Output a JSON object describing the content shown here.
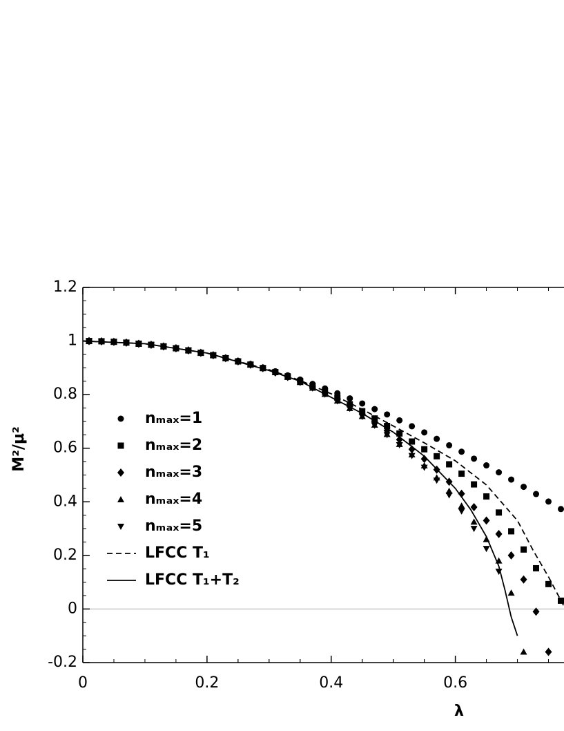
{
  "chart_data": {
    "type": "scatter",
    "xlabel": "λ",
    "ylabel": "M²/μ²",
    "xlim": [
      0,
      0.775
    ],
    "ylim": [
      -0.2,
      1.2
    ],
    "xticks": [
      0,
      0.2,
      0.4,
      0.6
    ],
    "yticks": [
      -0.2,
      0,
      0.2,
      0.4,
      0.6,
      0.8,
      1,
      1.2
    ],
    "grid": false,
    "zero_line": true,
    "legend": "left",
    "series": [
      {
        "name": "nₘₐₓ=1",
        "color": "#000000",
        "marker": "circle",
        "x": [
          0.01,
          0.03,
          0.05,
          0.07,
          0.09,
          0.11,
          0.13,
          0.15,
          0.17,
          0.19,
          0.21,
          0.23,
          0.25,
          0.27,
          0.29,
          0.31,
          0.33,
          0.35,
          0.37,
          0.39,
          0.41,
          0.43,
          0.45,
          0.47,
          0.49,
          0.51,
          0.53,
          0.55,
          0.57,
          0.59,
          0.61,
          0.63,
          0.65,
          0.67,
          0.69,
          0.71,
          0.73,
          0.75,
          0.77
        ],
        "values": [
          1.0,
          0.999,
          0.997,
          0.994,
          0.99,
          0.986,
          0.98,
          0.973,
          0.965,
          0.957,
          0.948,
          0.937,
          0.926,
          0.914,
          0.901,
          0.887,
          0.872,
          0.856,
          0.84,
          0.823,
          0.805,
          0.786,
          0.767,
          0.746,
          0.726,
          0.704,
          0.682,
          0.659,
          0.635,
          0.611,
          0.587,
          0.561,
          0.536,
          0.51,
          0.483,
          0.456,
          0.429,
          0.401,
          0.373
        ]
      },
      {
        "name": "nₘₐₓ=2",
        "color": "#000000",
        "marker": "square",
        "x": [
          0.01,
          0.03,
          0.05,
          0.07,
          0.09,
          0.11,
          0.13,
          0.15,
          0.17,
          0.19,
          0.21,
          0.23,
          0.25,
          0.27,
          0.29,
          0.31,
          0.33,
          0.35,
          0.37,
          0.39,
          0.41,
          0.43,
          0.45,
          0.47,
          0.49,
          0.51,
          0.53,
          0.55,
          0.57,
          0.59,
          0.61,
          0.63,
          0.65,
          0.67,
          0.69,
          0.71,
          0.73,
          0.75,
          0.77
        ],
        "values": [
          1.0,
          0.999,
          0.997,
          0.994,
          0.99,
          0.986,
          0.98,
          0.973,
          0.965,
          0.956,
          0.947,
          0.936,
          0.924,
          0.912,
          0.899,
          0.884,
          0.868,
          0.851,
          0.832,
          0.811,
          0.788,
          0.764,
          0.738,
          0.711,
          0.683,
          0.655,
          0.625,
          0.596,
          0.57,
          0.54,
          0.505,
          0.465,
          0.42,
          0.36,
          0.29,
          0.222,
          0.152,
          0.093,
          0.031
        ]
      },
      {
        "name": "nₘₐₓ=3",
        "color": "#000000",
        "marker": "diamond",
        "x": [
          0.01,
          0.03,
          0.05,
          0.07,
          0.09,
          0.11,
          0.13,
          0.15,
          0.17,
          0.19,
          0.21,
          0.23,
          0.25,
          0.27,
          0.29,
          0.31,
          0.33,
          0.35,
          0.37,
          0.39,
          0.41,
          0.43,
          0.45,
          0.47,
          0.49,
          0.51,
          0.53,
          0.55,
          0.57,
          0.59,
          0.61,
          0.63,
          0.65,
          0.67,
          0.69,
          0.71,
          0.73,
          0.75,
          0.77
        ],
        "values": [
          1.0,
          0.999,
          0.997,
          0.994,
          0.99,
          0.986,
          0.98,
          0.973,
          0.965,
          0.956,
          0.947,
          0.936,
          0.924,
          0.912,
          0.899,
          0.883,
          0.866,
          0.848,
          0.828,
          0.806,
          0.782,
          0.756,
          0.728,
          0.698,
          0.666,
          0.632,
          0.596,
          0.56,
          0.52,
          0.475,
          0.43,
          0.38,
          0.33,
          0.28,
          0.2,
          0.11,
          -0.01,
          -0.16,
          null
        ]
      },
      {
        "name": "nₘₐₓ=4",
        "color": "#000000",
        "marker": "triangle-up",
        "x": [
          0.01,
          0.03,
          0.05,
          0.07,
          0.09,
          0.11,
          0.13,
          0.15,
          0.17,
          0.19,
          0.21,
          0.23,
          0.25,
          0.27,
          0.29,
          0.31,
          0.33,
          0.35,
          0.37,
          0.39,
          0.41,
          0.43,
          0.45,
          0.47,
          0.49,
          0.51,
          0.53,
          0.55,
          0.57,
          0.59,
          0.61,
          0.63,
          0.65,
          0.67,
          0.69,
          0.71,
          0.73,
          0.75,
          0.77
        ],
        "values": [
          1.0,
          0.999,
          0.997,
          0.994,
          0.99,
          0.986,
          0.98,
          0.973,
          0.965,
          0.956,
          0.947,
          0.936,
          0.924,
          0.912,
          0.899,
          0.883,
          0.865,
          0.846,
          0.825,
          0.802,
          0.777,
          0.749,
          0.719,
          0.687,
          0.652,
          0.615,
          0.576,
          0.535,
          0.49,
          0.44,
          0.385,
          0.325,
          0.26,
          0.18,
          0.06,
          -0.16,
          null,
          null,
          null
        ]
      },
      {
        "name": "nₘₐₓ=5",
        "color": "#000000",
        "marker": "triangle-down",
        "x": [
          0.01,
          0.03,
          0.05,
          0.07,
          0.09,
          0.11,
          0.13,
          0.15,
          0.17,
          0.19,
          0.21,
          0.23,
          0.25,
          0.27,
          0.29,
          0.31,
          0.33,
          0.35,
          0.37,
          0.39,
          0.41,
          0.43,
          0.45,
          0.47,
          0.49,
          0.51,
          0.53,
          0.55,
          0.57,
          0.59,
          0.61,
          0.63,
          0.65,
          0.67,
          0.69,
          0.71,
          0.73,
          0.75,
          0.77
        ],
        "values": [
          1.0,
          0.999,
          0.997,
          0.994,
          0.99,
          0.986,
          0.98,
          0.973,
          0.965,
          0.956,
          0.947,
          0.936,
          0.924,
          0.912,
          0.899,
          0.882,
          0.864,
          0.845,
          0.824,
          0.801,
          0.776,
          0.748,
          0.718,
          0.685,
          0.65,
          0.612,
          0.572,
          0.528,
          0.48,
          0.425,
          0.365,
          0.3,
          0.225,
          0.14,
          null,
          null,
          null,
          null,
          null
        ]
      },
      {
        "name": "LFCC T₁",
        "color": "#000000",
        "linestyle": "dashed",
        "x": [
          0,
          0.1,
          0.2,
          0.3,
          0.35,
          0.4,
          0.45,
          0.5,
          0.55,
          0.6,
          0.65,
          0.7,
          0.725,
          0.75,
          0.775
        ],
        "values": [
          1,
          0.99,
          0.955,
          0.893,
          0.853,
          0.803,
          0.745,
          0.683,
          0.62,
          0.553,
          0.463,
          0.33,
          0.22,
          0.12,
          0.01
        ]
      },
      {
        "name": "LFCC T₁+T₂",
        "color": "#000000",
        "linestyle": "solid",
        "x": [
          0,
          0.1,
          0.2,
          0.3,
          0.35,
          0.4,
          0.45,
          0.5,
          0.55,
          0.6,
          0.625,
          0.65,
          0.67,
          0.68,
          0.69,
          0.7
        ],
        "values": [
          1,
          0.99,
          0.955,
          0.89,
          0.85,
          0.79,
          0.73,
          0.66,
          0.57,
          0.45,
          0.37,
          0.27,
          0.16,
          0.07,
          -0.03,
          -0.1
        ]
      }
    ]
  }
}
